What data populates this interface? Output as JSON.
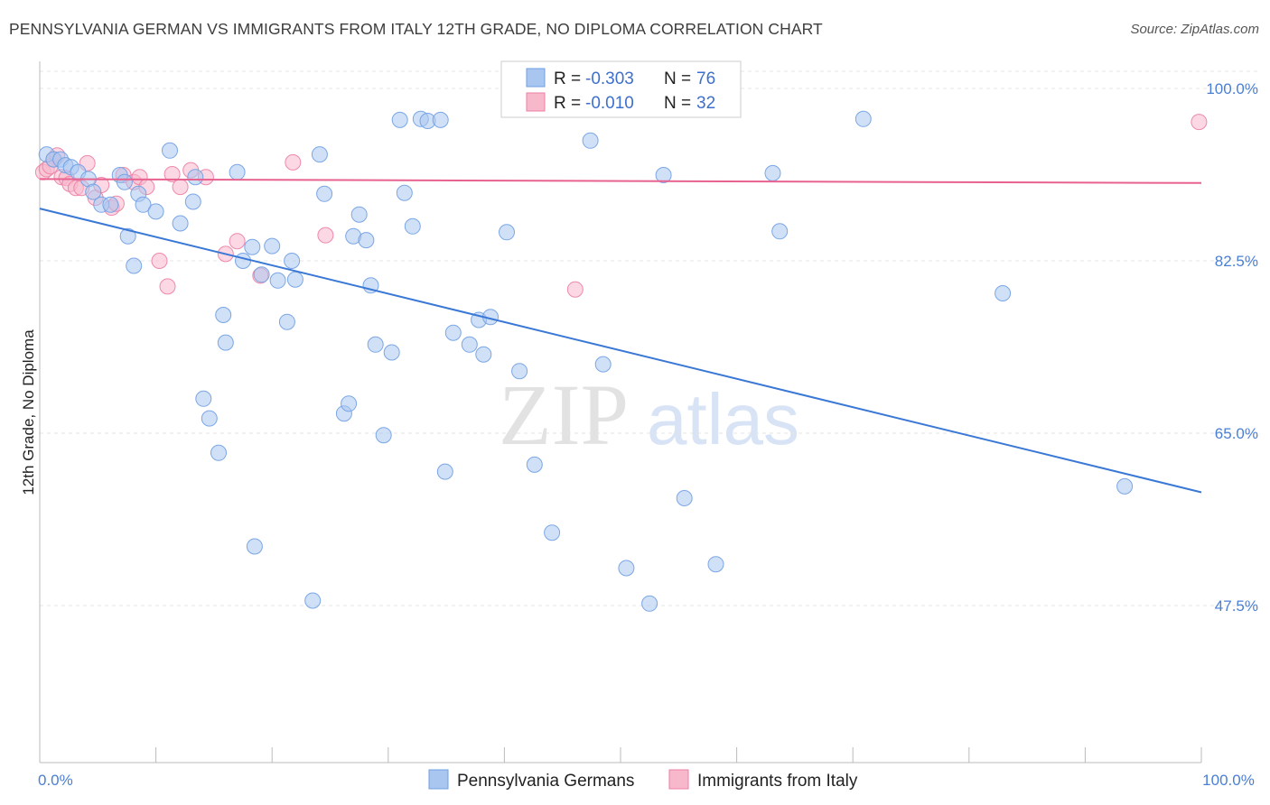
{
  "header": {
    "title": "PENNSYLVANIA GERMAN VS IMMIGRANTS FROM ITALY 12TH GRADE, NO DIPLOMA CORRELATION CHART",
    "source": "Source: ZipAtlas.com"
  },
  "watermark": {
    "zip": "ZIP",
    "atlas": "atlas"
  },
  "legend_stats": {
    "rows": [
      {
        "r_label": "R =",
        "r_value": "-0.303",
        "n_label": "N =",
        "n_value": "76",
        "color": "#a9c6f1"
      },
      {
        "r_label": "R =",
        "r_value": "-0.010",
        "n_label": "N =",
        "n_value": "32",
        "color": "#f7b8cc"
      }
    ]
  },
  "bottom_legend": [
    "Pennsylvania Germans",
    "Immigrants from Italy"
  ],
  "chart_data": {
    "type": "scatter",
    "title": "PENNSYLVANIA GERMAN VS IMMIGRANTS FROM ITALY 12TH GRADE, NO DIPLOMA CORRELATION CHART",
    "xlabel": "",
    "ylabel": "12th Grade, No Diploma",
    "xlim": [
      0,
      100
    ],
    "ylim": [
      32,
      103
    ],
    "x_tick_labels": [
      "0.0%",
      "100.0%"
    ],
    "y_ticks": [
      47.5,
      65.0,
      82.5,
      100.0
    ],
    "y_tick_labels": [
      "47.5%",
      "65.0%",
      "82.5%",
      "100.0%"
    ],
    "grid": true,
    "legend_position": "top-center",
    "colors": {
      "blue": "#6f9fe3",
      "blue_fill": "#a9c6f1",
      "pink": "#ec7fa3",
      "pink_fill": "#f7b8cc",
      "blue_line": "#3a78d6",
      "pink_line": "#e8628f"
    },
    "series": [
      {
        "name": "Pennsylvania Germans",
        "color": "#6f9fe3",
        "trend": {
          "x": [
            0,
            100
          ],
          "y": [
            87.8,
            59.0
          ]
        },
        "points": [
          [
            0.6,
            93.3
          ],
          [
            1.2,
            92.8
          ],
          [
            1.8,
            92.8
          ],
          [
            2.2,
            92.2
          ],
          [
            2.7,
            92.0
          ],
          [
            3.3,
            91.5
          ],
          [
            4.2,
            90.8
          ],
          [
            4.6,
            89.5
          ],
          [
            5.3,
            88.2
          ],
          [
            6.1,
            88.2
          ],
          [
            6.9,
            91.2
          ],
          [
            7.3,
            90.5
          ],
          [
            7.6,
            85.0
          ],
          [
            8.1,
            82.0
          ],
          [
            8.5,
            89.3
          ],
          [
            8.9,
            88.2
          ],
          [
            10.0,
            87.5
          ],
          [
            11.2,
            93.7
          ],
          [
            12.1,
            86.3
          ],
          [
            13.2,
            88.5
          ],
          [
            13.4,
            91.0
          ],
          [
            14.1,
            68.5
          ],
          [
            14.6,
            66.5
          ],
          [
            15.4,
            63.0
          ],
          [
            15.8,
            77.0
          ],
          [
            16.0,
            74.2
          ],
          [
            17.0,
            91.5
          ],
          [
            17.5,
            82.5
          ],
          [
            18.3,
            83.9
          ],
          [
            18.5,
            53.5
          ],
          [
            19.1,
            81.1
          ],
          [
            20.0,
            84.0
          ],
          [
            20.5,
            80.5
          ],
          [
            21.3,
            76.3
          ],
          [
            21.7,
            82.5
          ],
          [
            22.0,
            80.6
          ],
          [
            23.5,
            48.0
          ],
          [
            24.1,
            93.3
          ],
          [
            24.5,
            89.3
          ],
          [
            26.2,
            67.0
          ],
          [
            26.6,
            68.0
          ],
          [
            27.0,
            85.0
          ],
          [
            27.5,
            87.2
          ],
          [
            28.1,
            84.6
          ],
          [
            28.5,
            80.0
          ],
          [
            28.9,
            74.0
          ],
          [
            29.6,
            64.8
          ],
          [
            30.3,
            73.2
          ],
          [
            31.0,
            96.8
          ],
          [
            31.4,
            89.4
          ],
          [
            32.1,
            86.0
          ],
          [
            32.8,
            96.9
          ],
          [
            33.4,
            96.7
          ],
          [
            34.5,
            96.8
          ],
          [
            34.9,
            61.1
          ],
          [
            35.6,
            75.2
          ],
          [
            37.0,
            74.0
          ],
          [
            37.8,
            76.5
          ],
          [
            38.2,
            73.0
          ],
          [
            38.8,
            76.8
          ],
          [
            40.2,
            85.4
          ],
          [
            41.3,
            71.3
          ],
          [
            42.6,
            61.8
          ],
          [
            44.1,
            54.9
          ],
          [
            47.4,
            94.7
          ],
          [
            48.5,
            72.0
          ],
          [
            50.5,
            51.3
          ],
          [
            52.5,
            47.7
          ],
          [
            53.7,
            91.2
          ],
          [
            55.5,
            58.4
          ],
          [
            58.2,
            51.7
          ],
          [
            63.1,
            91.4
          ],
          [
            63.7,
            85.5
          ],
          [
            70.9,
            96.9
          ],
          [
            82.9,
            79.2
          ],
          [
            93.4,
            59.6
          ]
        ]
      },
      {
        "name": "Immigrants from Italy",
        "color": "#ec7fa3",
        "trend": {
          "x": [
            0,
            100
          ],
          "y": [
            90.8,
            90.4
          ]
        },
        "points": [
          [
            0.3,
            91.5
          ],
          [
            0.6,
            91.8
          ],
          [
            0.9,
            92.1
          ],
          [
            1.2,
            92.8
          ],
          [
            1.5,
            93.2
          ],
          [
            1.9,
            91.0
          ],
          [
            2.3,
            90.9
          ],
          [
            2.6,
            90.3
          ],
          [
            3.1,
            89.9
          ],
          [
            3.6,
            89.9
          ],
          [
            4.1,
            92.4
          ],
          [
            4.8,
            88.9
          ],
          [
            5.3,
            90.2
          ],
          [
            6.2,
            87.9
          ],
          [
            6.6,
            88.3
          ],
          [
            7.2,
            91.2
          ],
          [
            8.1,
            90.5
          ],
          [
            8.6,
            91.0
          ],
          [
            9.2,
            90.0
          ],
          [
            10.3,
            82.5
          ],
          [
            11.0,
            79.9
          ],
          [
            11.4,
            91.3
          ],
          [
            12.1,
            90.0
          ],
          [
            13.0,
            91.7
          ],
          [
            14.3,
            91.0
          ],
          [
            16.0,
            83.2
          ],
          [
            17.0,
            84.5
          ],
          [
            19.0,
            81.0
          ],
          [
            21.8,
            92.5
          ],
          [
            24.6,
            85.1
          ],
          [
            46.1,
            79.6
          ],
          [
            99.8,
            96.6
          ]
        ]
      }
    ]
  }
}
